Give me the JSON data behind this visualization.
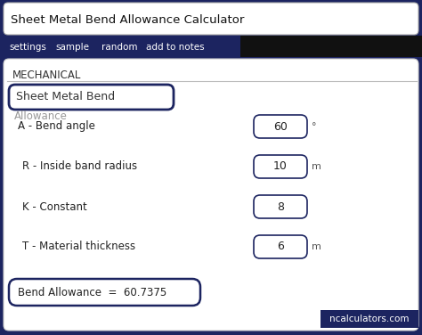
{
  "title": "Sheet Metal Bend Allowance Calculator",
  "nav_items": [
    "settings",
    "sample",
    "random",
    "add to notes"
  ],
  "nav_bg": "#1c2460",
  "nav_text_color": "#ffffff",
  "section_label": "MECHANICAL",
  "input_box_label": "Sheet Metal Bend",
  "overlay_label": "Allowance",
  "fields": [
    {
      "label": "A - Bend angle",
      "value": "60",
      "unit": "°"
    },
    {
      "label": "R - Inside band radius",
      "value": "10",
      "unit": "m"
    },
    {
      "label": "K - Constant",
      "value": "8",
      "unit": ""
    },
    {
      "label": "T - Material thickness",
      "value": "6",
      "unit": "m"
    }
  ],
  "result_text": "Bend Allowance  =  60.7375",
  "watermark": "ncalculators.com",
  "watermark_bg": "#1c2460",
  "watermark_text_color": "#ffffff",
  "bg_color": "#1c2460",
  "card_color": "#f5f5f5",
  "inner_card_color": "#ffffff",
  "border_color": "#1c2460",
  "title_bg": "#ffffff",
  "input_border": "#1c2460",
  "field_box_color": "#f0f0f0"
}
